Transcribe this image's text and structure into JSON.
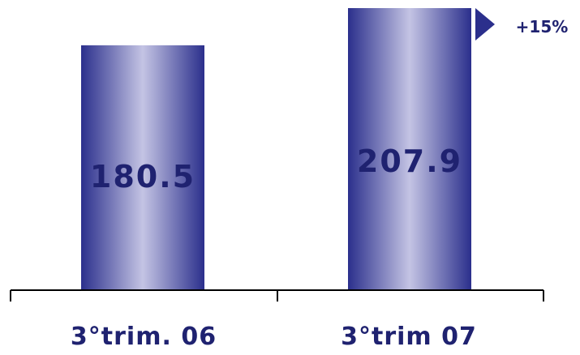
{
  "chart_data": {
    "type": "bar",
    "categories": [
      "3°trim. 06",
      "3°trim 07"
    ],
    "values": [
      180.5,
      207.9
    ],
    "value_labels": [
      "180.5",
      "207.9"
    ],
    "growth_label": "+15%",
    "title": "",
    "xlabel": "",
    "ylabel": "",
    "grid": false,
    "colors": {
      "bar_edge": "#2b2f8c",
      "bar_center": "#c4c4e4",
      "text": "#1f2270",
      "axis": "#000000"
    }
  }
}
